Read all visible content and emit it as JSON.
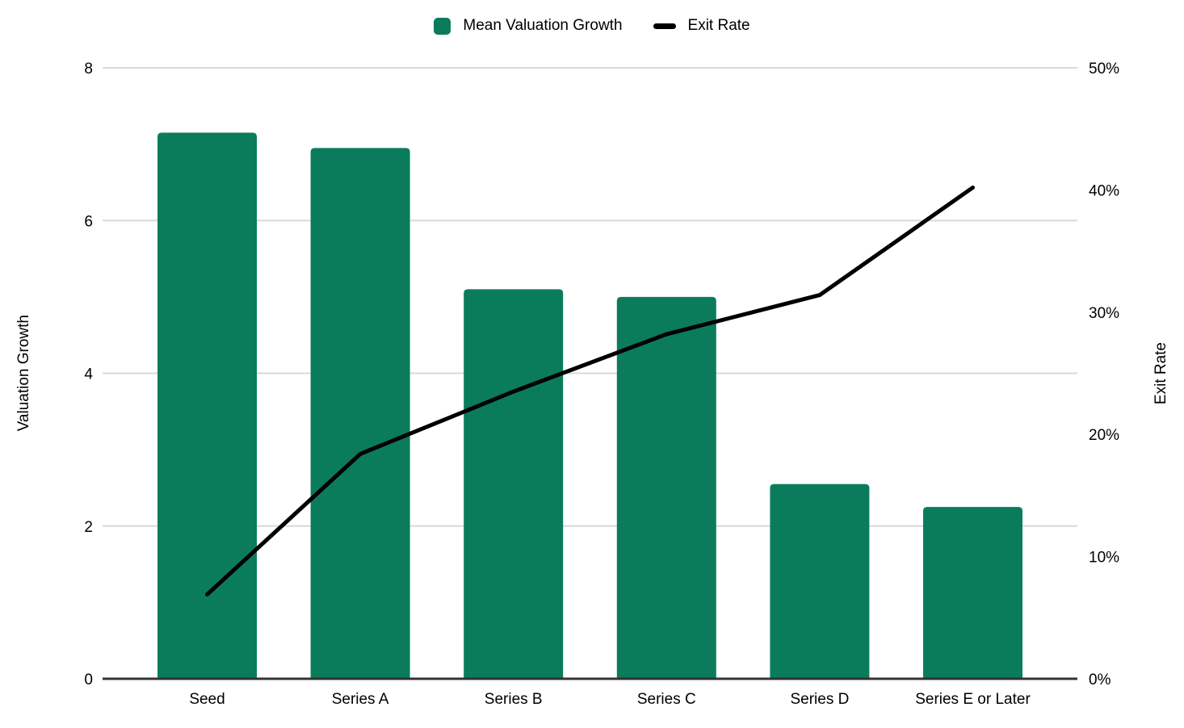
{
  "chart_data": {
    "type": "combo-bar-line",
    "title": "",
    "categories": [
      "Seed",
      "Series A",
      "Series B",
      "Series C",
      "Series D",
      "Series E or Later"
    ],
    "series": [
      {
        "name": "Mean Valuation Growth",
        "type": "bar",
        "axis": "left",
        "values": [
          7.15,
          6.95,
          5.1,
          5.0,
          2.55,
          2.25
        ]
      },
      {
        "name": "Exit Rate",
        "type": "line",
        "axis": "right",
        "values_percent": [
          6.9,
          18.4,
          23.5,
          28.2,
          31.4,
          40.2
        ]
      }
    ],
    "left_axis": {
      "title": "Valuation Growth",
      "min": 0,
      "max": 8,
      "tick_values": [
        0,
        2,
        4,
        6,
        8
      ],
      "tick_labels": [
        "0",
        "2",
        "4",
        "6",
        "8"
      ]
    },
    "right_axis": {
      "title": "Exit Rate",
      "min": 0,
      "max": 50,
      "tick_values": [
        0,
        10,
        20,
        30,
        40,
        50
      ],
      "tick_labels": [
        "0%",
        "10%",
        "20%",
        "30%",
        "40%",
        "50%"
      ]
    },
    "grid": "horizontal",
    "legend_position": "top-center",
    "colors": {
      "bar": "#0a7c5c",
      "line": "#000000",
      "grid": "#d9d9d9",
      "axis": "#333333",
      "text": "#000000",
      "background": "#ffffff"
    }
  }
}
